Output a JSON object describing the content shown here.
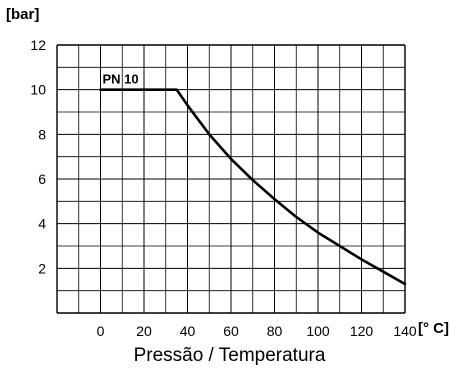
{
  "chart_data": {
    "type": "line",
    "title": "Pressão / Temperatura",
    "xlabel": "[° C]",
    "ylabel": "[bar]",
    "xlim": [
      -20,
      140
    ],
    "ylim": [
      0,
      12
    ],
    "x_ticks": [
      "0",
      "20",
      "40",
      "60",
      "80",
      "100",
      "120",
      "140"
    ],
    "y_ticks": [
      "2",
      "4",
      "6",
      "8",
      "10",
      "12"
    ],
    "grid": true,
    "series": [
      {
        "name": "PN 10",
        "x": [
          0,
          35,
          40,
          50,
          60,
          70,
          80,
          90,
          100,
          110,
          120,
          130,
          140
        ],
        "y": [
          10,
          10,
          9.3,
          8.0,
          6.9,
          5.95,
          5.1,
          4.3,
          3.6,
          3.0,
          2.4,
          1.85,
          1.3
        ]
      }
    ]
  }
}
